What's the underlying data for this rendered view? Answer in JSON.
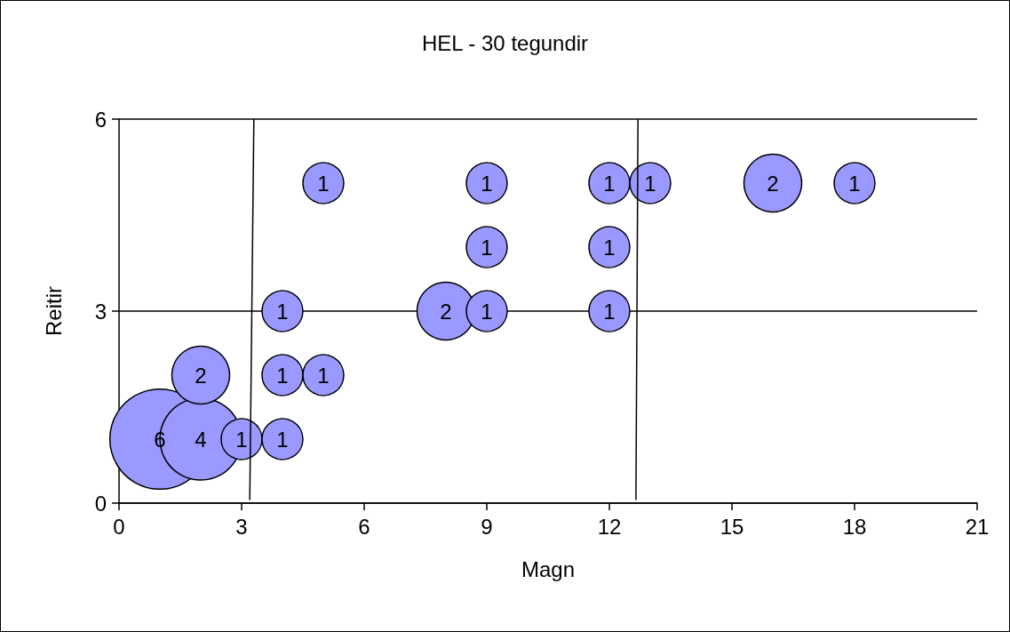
{
  "chart_data": {
    "type": "bubble",
    "title": "HEL - 30 tegundir",
    "xlabel": "Magn",
    "ylabel": "Reitir",
    "xlim": [
      0,
      21
    ],
    "xticks": [
      0,
      3,
      6,
      9,
      12,
      15,
      18,
      21
    ],
    "ylim": [
      0,
      6
    ],
    "yticks": [
      0,
      3,
      6
    ],
    "grid": "y",
    "series": [
      {
        "color": "#9999ff",
        "x": [
          1,
          2,
          3,
          4,
          2,
          4,
          5,
          4,
          8,
          9,
          12,
          9,
          12,
          5,
          9,
          12,
          13,
          16,
          18
        ],
        "values": [
          1,
          1,
          1,
          1,
          2,
          2,
          2,
          3,
          3,
          3,
          3,
          4,
          4,
          5,
          5,
          5,
          5,
          5,
          5
        ],
        "sizes": [
          6,
          4,
          1,
          1,
          2,
          1,
          1,
          1,
          2,
          1,
          1,
          1,
          1,
          1,
          1,
          1,
          1,
          2,
          1
        ],
        "value_labels": [
          "6",
          "4",
          "1",
          "1",
          "2",
          "1",
          "1",
          "1",
          "2",
          "1",
          "1",
          "1",
          "1",
          "1",
          "1",
          "1",
          "1",
          "2",
          "1"
        ]
      },
      {
        "type": "line",
        "color": "#000000",
        "x": [
          3.2,
          3.3
        ],
        "values": [
          0.05,
          6
        ],
        "marker": "none"
      },
      {
        "type": "line",
        "color": "#000000",
        "x": [
          12.65,
          12.7
        ],
        "values": [
          0.05,
          6
        ],
        "marker": "none"
      }
    ]
  }
}
